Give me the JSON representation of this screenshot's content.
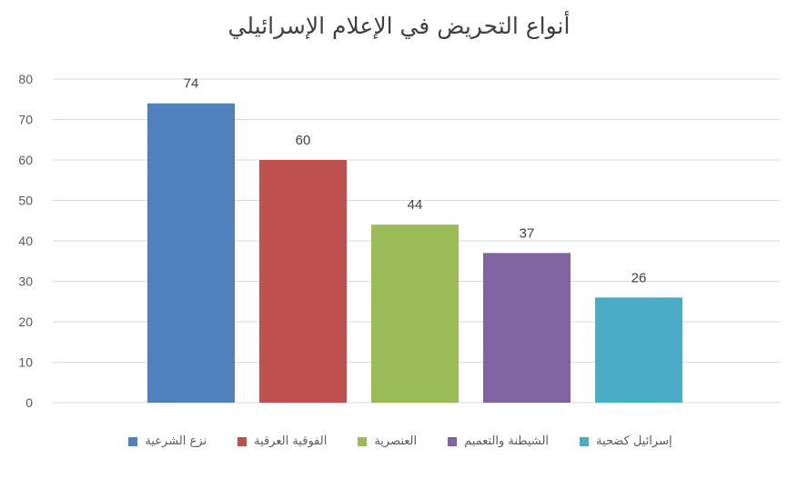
{
  "chart_data": {
    "type": "bar",
    "title": "أنواع التحريض في الإعلام الإسرائيلي",
    "categories": [
      "نزع الشرعية",
      "الفوقية العرقية",
      "العنصرية",
      "الشيطنة والتعميم",
      "إسرائيل كضحية"
    ],
    "values": [
      74,
      60,
      44,
      37,
      26
    ],
    "colors": [
      "#4f81bd",
      "#c0504d",
      "#9bbb59",
      "#8064a2",
      "#4bacc6"
    ],
    "ylim": [
      0,
      80
    ],
    "yticks": [
      0,
      10,
      20,
      30,
      40,
      50,
      60,
      70,
      80
    ],
    "grid": true,
    "legend_position": "bottom",
    "data_labels": true
  }
}
